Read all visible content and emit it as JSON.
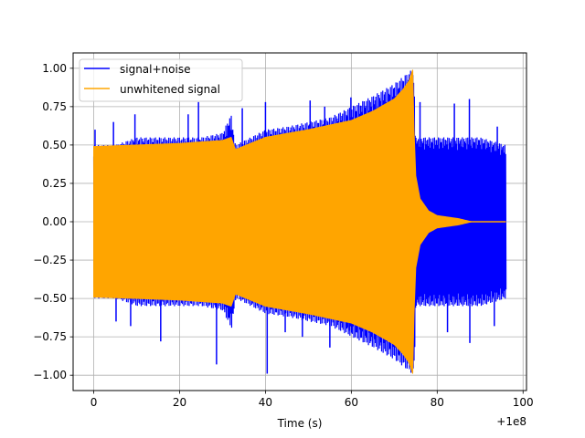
{
  "chart_data": {
    "type": "line",
    "title": "",
    "xlabel": "Time (s)",
    "ylabel": "",
    "xlim": [
      -4.8,
      100.8
    ],
    "ylim": [
      -1.1,
      1.1
    ],
    "x_offset_label": "+1e8",
    "grid": true,
    "legend_position": "upper-left",
    "x_ticks": [
      0,
      20,
      40,
      60,
      80,
      100
    ],
    "y_ticks": [
      -1.0,
      -0.75,
      -0.5,
      -0.25,
      0.0,
      0.25,
      0.5,
      0.75,
      1.0
    ],
    "x_tick_labels": [
      "0",
      "20",
      "40",
      "60",
      "80",
      "100"
    ],
    "y_tick_labels": [
      "−1.00",
      "−0.75",
      "−0.50",
      "−0.25",
      "0.00",
      "0.25",
      "0.50",
      "0.75",
      "1.00"
    ],
    "series": [
      {
        "name": "signal+noise",
        "color": "#0000ff",
        "description_envelope": {
          "x": [
            0,
            5,
            10,
            15,
            20,
            25,
            30,
            32,
            33,
            40,
            45,
            50,
            55,
            60,
            65,
            70,
            74.5,
            75,
            80,
            85,
            90,
            96
          ],
          "upper": [
            0.5,
            0.5,
            0.55,
            0.55,
            0.55,
            0.55,
            0.58,
            0.7,
            0.5,
            0.6,
            0.62,
            0.65,
            0.68,
            0.75,
            0.82,
            0.9,
            1.0,
            0.55,
            0.55,
            0.55,
            0.55,
            0.5
          ],
          "lower": [
            -0.5,
            -0.5,
            -0.55,
            -0.55,
            -0.55,
            -0.55,
            -0.58,
            -0.7,
            -0.5,
            -0.6,
            -0.62,
            -0.65,
            -0.68,
            -0.75,
            -0.82,
            -0.9,
            -1.0,
            -0.55,
            -0.55,
            -0.55,
            -0.55,
            -0.5
          ],
          "spikes_max": [
            [
              0.3,
              0.6
            ],
            [
              4.6,
              0.65
            ],
            [
              9.6,
              0.7
            ],
            [
              22,
              0.7
            ],
            [
              24.4,
              0.78
            ],
            [
              34.6,
              0.74
            ],
            [
              40,
              0.78
            ],
            [
              50.4,
              0.79
            ],
            [
              53.8,
              0.75
            ],
            [
              59.9,
              0.81
            ],
            [
              76,
              0.78
            ],
            [
              84,
              0.77
            ],
            [
              87.5,
              0.8
            ],
            [
              94,
              0.62
            ]
          ],
          "spikes_min": [
            [
              5.2,
              -0.65
            ],
            [
              8.6,
              -0.68
            ],
            [
              15.6,
              -0.78
            ],
            [
              28.6,
              -0.93
            ],
            [
              40.4,
              -0.99
            ],
            [
              44.6,
              -0.72
            ],
            [
              48.6,
              -0.75
            ],
            [
              55,
              -0.82
            ],
            [
              59.6,
              -0.71
            ],
            [
              82.4,
              -0.72
            ],
            [
              87.6,
              -0.79
            ],
            [
              93.3,
              -0.68
            ]
          ]
        }
      },
      {
        "name": "unwhitened signal",
        "color": "#ffa500",
        "description_envelope": {
          "x": [
            0,
            10,
            20,
            30,
            32,
            33,
            40,
            50,
            60,
            65,
            70,
            72,
            73.5,
            74.3,
            74.6,
            75,
            76,
            78,
            80,
            85,
            88,
            96
          ],
          "amplitude": [
            0.49,
            0.5,
            0.51,
            0.53,
            0.55,
            0.47,
            0.55,
            0.6,
            0.66,
            0.72,
            0.8,
            0.86,
            0.92,
            0.99,
            0.6,
            0.3,
            0.15,
            0.07,
            0.04,
            0.02,
            0.0,
            0.0
          ]
        }
      }
    ]
  }
}
